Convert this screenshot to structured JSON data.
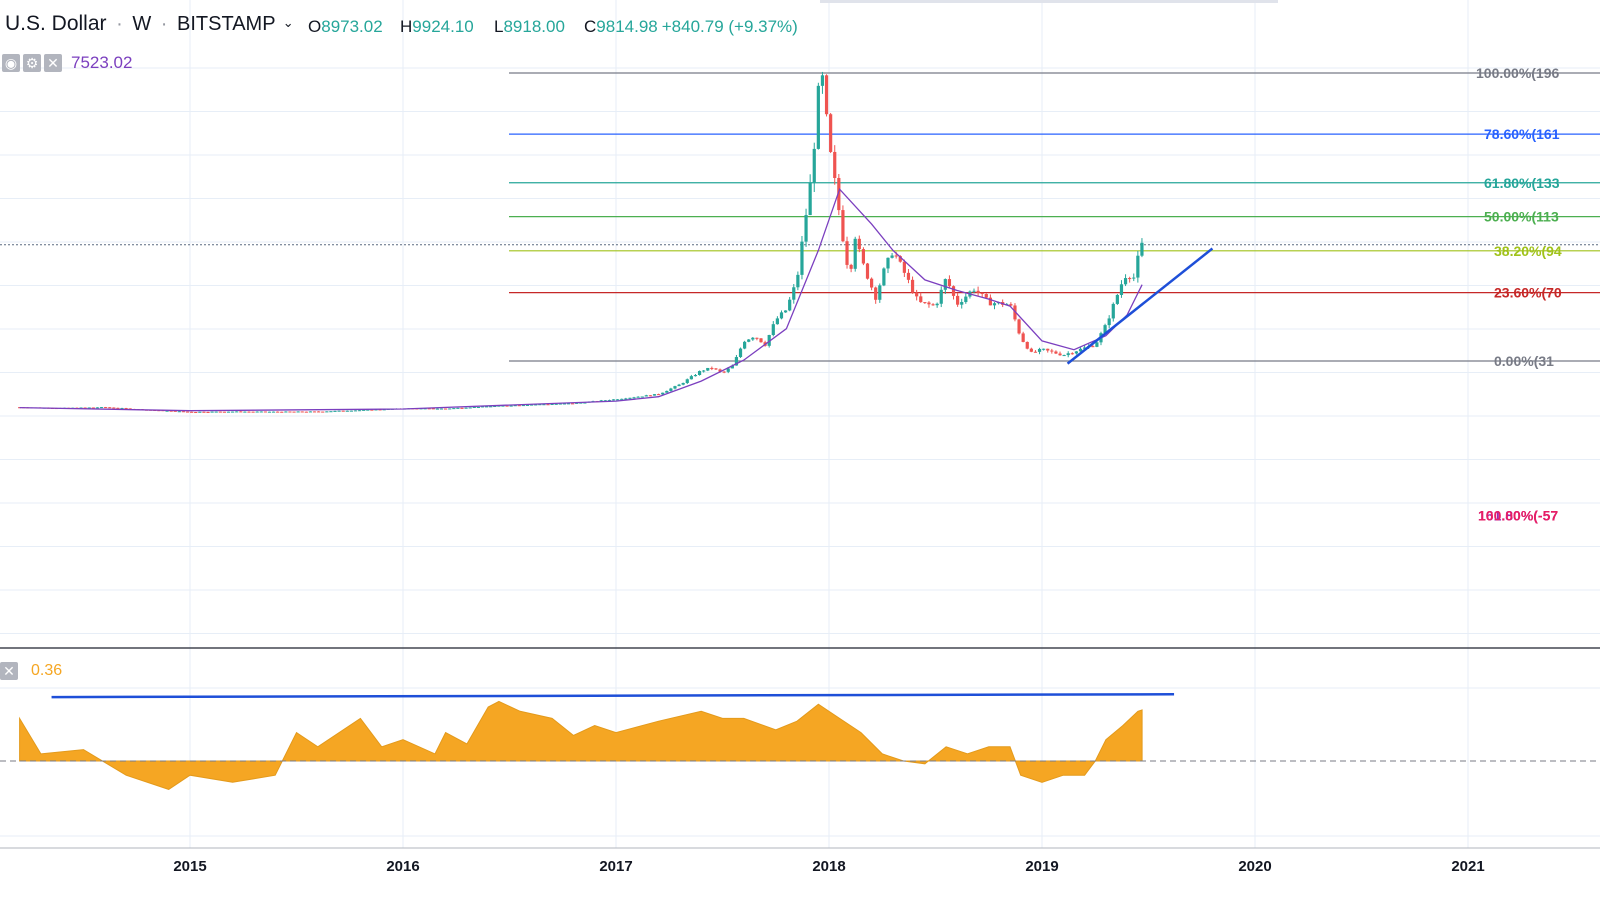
{
  "header": {
    "symbol": "U.S. Dollar",
    "interval": "W",
    "exchange": "BITSTAMP",
    "open_label": "O",
    "open": "8973.02",
    "high_label": "H",
    "high": "9924.10",
    "low_label": "L",
    "low": "8918.00",
    "close_label": "C",
    "close": "9814.98",
    "change": "+840.79 (+9.37%)"
  },
  "indicator_main": {
    "value": "7523.02",
    "color": "#7b3fbf",
    "icons": [
      "eye-icon",
      "gear-icon",
      "close-icon"
    ]
  },
  "indicator_lower": {
    "value": "0.36",
    "color": "#f5a623",
    "icons": [
      "close-icon"
    ]
  },
  "colors": {
    "up": "#26a69a",
    "down": "#ef5350",
    "ma": "#7b3fbf",
    "trendline": "#1e4fd8",
    "oscillator": "#f5a623",
    "grid": "#e7eef7"
  },
  "chart_data": {
    "type": "line",
    "x_axis": {
      "ticks": [
        "2015",
        "2016",
        "2017",
        "2018",
        "2019",
        "2020",
        "2021"
      ],
      "range": [
        2014.2,
        2021.45
      ]
    },
    "y_range": [
      -5700,
      21000
    ],
    "last_price_line": 9814.98,
    "series": [
      {
        "name": "",
        "values": [
          [
            2014.2,
            500
          ],
          [
            2014.4,
            450
          ],
          [
            2014.6,
            500
          ],
          [
            2014.8,
            350
          ],
          [
            2015.0,
            230
          ],
          [
            2015.2,
            250
          ],
          [
            2015.4,
            240
          ],
          [
            2015.6,
            250
          ],
          [
            2015.8,
            330
          ],
          [
            2016.0,
            430
          ],
          [
            2016.2,
            420
          ],
          [
            2016.4,
            550
          ],
          [
            2016.6,
            650
          ],
          [
            2016.8,
            720
          ],
          [
            2017.0,
            960
          ],
          [
            2017.1,
            1100
          ],
          [
            2017.2,
            1250
          ],
          [
            2017.3,
            1800
          ],
          [
            2017.4,
            2600
          ],
          [
            2017.45,
            2750
          ],
          [
            2017.5,
            2450
          ],
          [
            2017.55,
            2900
          ],
          [
            2017.6,
            4300
          ],
          [
            2017.65,
            4600
          ],
          [
            2017.7,
            4100
          ],
          [
            2017.75,
            5500
          ],
          [
            2017.8,
            6100
          ],
          [
            2017.85,
            7800
          ],
          [
            2017.88,
            10500
          ],
          [
            2017.92,
            14000
          ],
          [
            2017.95,
            18500
          ],
          [
            2017.97,
            19300
          ],
          [
            2018.0,
            15500
          ],
          [
            2018.02,
            14000
          ],
          [
            2018.05,
            11500
          ],
          [
            2018.08,
            9000
          ],
          [
            2018.1,
            8200
          ],
          [
            2018.12,
            10500
          ],
          [
            2018.15,
            9000
          ],
          [
            2018.2,
            7400
          ],
          [
            2018.22,
            6800
          ],
          [
            2018.26,
            8400
          ],
          [
            2018.3,
            9500
          ],
          [
            2018.35,
            8300
          ],
          [
            2018.42,
            6500
          ],
          [
            2018.5,
            6300
          ],
          [
            2018.55,
            7900
          ],
          [
            2018.6,
            6400
          ],
          [
            2018.68,
            7300
          ],
          [
            2018.75,
            6500
          ],
          [
            2018.85,
            6400
          ],
          [
            2018.9,
            4500
          ],
          [
            2018.95,
            3600
          ],
          [
            2019.0,
            3800
          ],
          [
            2019.1,
            3500
          ],
          [
            2019.2,
            3900
          ],
          [
            2019.25,
            4100
          ],
          [
            2019.3,
            5200
          ],
          [
            2019.38,
            7800
          ],
          [
            2019.4,
            8200
          ],
          [
            2019.43,
            7900
          ],
          [
            2019.45,
            9000
          ],
          [
            2019.47,
            9815
          ]
        ]
      },
      {
        "name": "",
        "values": [
          [
            2014.2,
            480
          ],
          [
            2015.0,
            300
          ],
          [
            2016.0,
            400
          ],
          [
            2017.0,
            850
          ],
          [
            2017.2,
            1100
          ],
          [
            2017.4,
            2000
          ],
          [
            2017.6,
            3200
          ],
          [
            2017.8,
            5000
          ],
          [
            2017.95,
            9500
          ],
          [
            2018.05,
            13000
          ],
          [
            2018.2,
            11000
          ],
          [
            2018.3,
            9500
          ],
          [
            2018.45,
            7800
          ],
          [
            2018.6,
            7200
          ],
          [
            2018.75,
            6700
          ],
          [
            2018.85,
            6300
          ],
          [
            2019.0,
            4300
          ],
          [
            2019.15,
            3800
          ],
          [
            2019.3,
            4600
          ],
          [
            2019.4,
            5800
          ],
          [
            2019.47,
            7523
          ]
        ]
      }
    ],
    "fibonacci": [
      {
        "label": "100.00%(196",
        "price": 19666,
        "color": "#787b86"
      },
      {
        "label": "78.60%(161",
        "price": 16160,
        "color": "#2962ff"
      },
      {
        "label": "61.80%(133",
        "price": 13370,
        "color": "#26a69a"
      },
      {
        "label": "50.00%(113",
        "price": 11430,
        "color": "#4caf50"
      },
      {
        "label": "38.20%(94",
        "price": 9470,
        "color": "#a0c21a"
      },
      {
        "label": "23.60%(70",
        "price": 7070,
        "color": "#c62828"
      },
      {
        "label": "0.00%(31",
        "price": 3150,
        "color": "#787b86"
      },
      {
        "label": "161.80%(-57",
        "price": -5700,
        "color": "#9c27b0"
      },
      {
        "label": "100.00%(-57",
        "price": -5700,
        "color": "#e91e63"
      }
    ],
    "trendline_price": {
      "from": [
        2019.12,
        3000
      ],
      "to": [
        2019.8,
        9600
      ]
    },
    "oscillator": {
      "baseline": 0,
      "y_range": [
        -0.3,
        0.6
      ],
      "values": [
        [
          2014.2,
          0.3
        ],
        [
          2014.3,
          0.05
        ],
        [
          2014.5,
          0.08
        ],
        [
          2014.7,
          -0.1
        ],
        [
          2014.9,
          -0.2
        ],
        [
          2015.0,
          -0.1
        ],
        [
          2015.2,
          -0.15
        ],
        [
          2015.4,
          -0.1
        ],
        [
          2015.5,
          0.2
        ],
        [
          2015.6,
          0.1
        ],
        [
          2015.8,
          0.3
        ],
        [
          2015.9,
          0.1
        ],
        [
          2016.0,
          0.15
        ],
        [
          2016.15,
          0.05
        ],
        [
          2016.2,
          0.2
        ],
        [
          2016.3,
          0.12
        ],
        [
          2016.4,
          0.38
        ],
        [
          2016.45,
          0.42
        ],
        [
          2016.55,
          0.35
        ],
        [
          2016.7,
          0.3
        ],
        [
          2016.8,
          0.18
        ],
        [
          2016.9,
          0.25
        ],
        [
          2017.0,
          0.2
        ],
        [
          2017.2,
          0.28
        ],
        [
          2017.4,
          0.35
        ],
        [
          2017.5,
          0.3
        ],
        [
          2017.6,
          0.3
        ],
        [
          2017.75,
          0.22
        ],
        [
          2017.85,
          0.28
        ],
        [
          2017.95,
          0.4
        ],
        [
          2018.05,
          0.3
        ],
        [
          2018.15,
          0.2
        ],
        [
          2018.25,
          0.05
        ],
        [
          2018.35,
          0.0
        ],
        [
          2018.45,
          -0.02
        ],
        [
          2018.55,
          0.1
        ],
        [
          2018.65,
          0.05
        ],
        [
          2018.75,
          0.1
        ],
        [
          2018.85,
          0.1
        ],
        [
          2018.9,
          -0.1
        ],
        [
          2019.0,
          -0.15
        ],
        [
          2019.1,
          -0.1
        ],
        [
          2019.2,
          -0.1
        ],
        [
          2019.25,
          0.0
        ],
        [
          2019.3,
          0.15
        ],
        [
          2019.38,
          0.25
        ],
        [
          2019.45,
          0.35
        ],
        [
          2019.47,
          0.36
        ]
      ],
      "trendline": {
        "from": [
          2014.35,
          0.45
        ],
        "to": [
          2019.62,
          0.47
        ]
      }
    }
  }
}
